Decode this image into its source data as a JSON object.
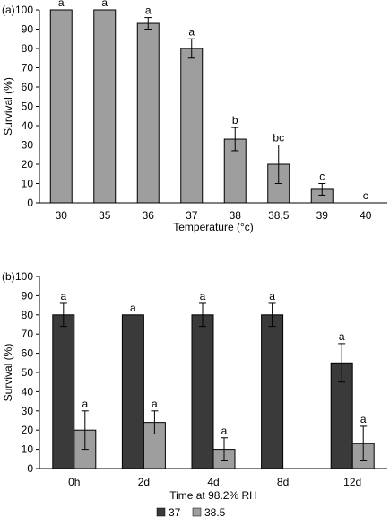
{
  "chart_data": [
    {
      "type": "bar",
      "panel_label": "(a)",
      "categories": [
        "30",
        "35",
        "36",
        "37",
        "38",
        "38,5",
        "39",
        "40"
      ],
      "values": [
        100,
        100,
        93,
        80,
        33,
        20,
        7,
        0
      ],
      "errors": [
        0,
        0,
        3,
        5,
        6,
        10,
        3,
        0
      ],
      "significance": [
        "a",
        "a",
        "a",
        "a",
        "b",
        "bc",
        "c",
        "c"
      ],
      "xlabel": "Temperature (°c)",
      "ylabel": "Survival (%)",
      "ylim": [
        0,
        100
      ],
      "yticks": [
        0,
        10,
        20,
        30,
        40,
        50,
        60,
        70,
        80,
        90,
        100
      ],
      "ytick_labels": [
        "0",
        "10",
        "20",
        "30",
        "40",
        "50",
        "60",
        "70",
        "80",
        "90",
        "100"
      ],
      "color": "#9e9e9e",
      "grid": false
    },
    {
      "type": "bar",
      "panel_label": "(b)",
      "categories": [
        "0h",
        "2d",
        "4d",
        "8d",
        "12d"
      ],
      "series": [
        {
          "name": "37",
          "values": [
            80,
            80,
            80,
            80,
            55
          ],
          "errors": [
            6,
            0,
            6,
            6,
            10
          ],
          "significance": [
            "a",
            "a",
            "a",
            "a",
            "a"
          ],
          "color": "#3a3a3a"
        },
        {
          "name": "38.5",
          "values": [
            20,
            24,
            10,
            0,
            13
          ],
          "errors": [
            10,
            6,
            6,
            0,
            9
          ],
          "significance": [
            "a",
            "a",
            "a",
            "",
            "a"
          ],
          "color": "#9e9e9e"
        }
      ],
      "xlabel": "Time at 98.2% RH",
      "ylabel": "Survival (%)",
      "ylim": [
        0,
        100
      ],
      "yticks": [
        0,
        10,
        20,
        30,
        40,
        50,
        60,
        70,
        80,
        90,
        100
      ],
      "ytick_labels": [
        "0",
        "10",
        "20",
        "30",
        "40",
        "50",
        "60",
        "70",
        "80",
        "90",
        "100"
      ],
      "legend_position": "bottom",
      "grid": false
    }
  ]
}
